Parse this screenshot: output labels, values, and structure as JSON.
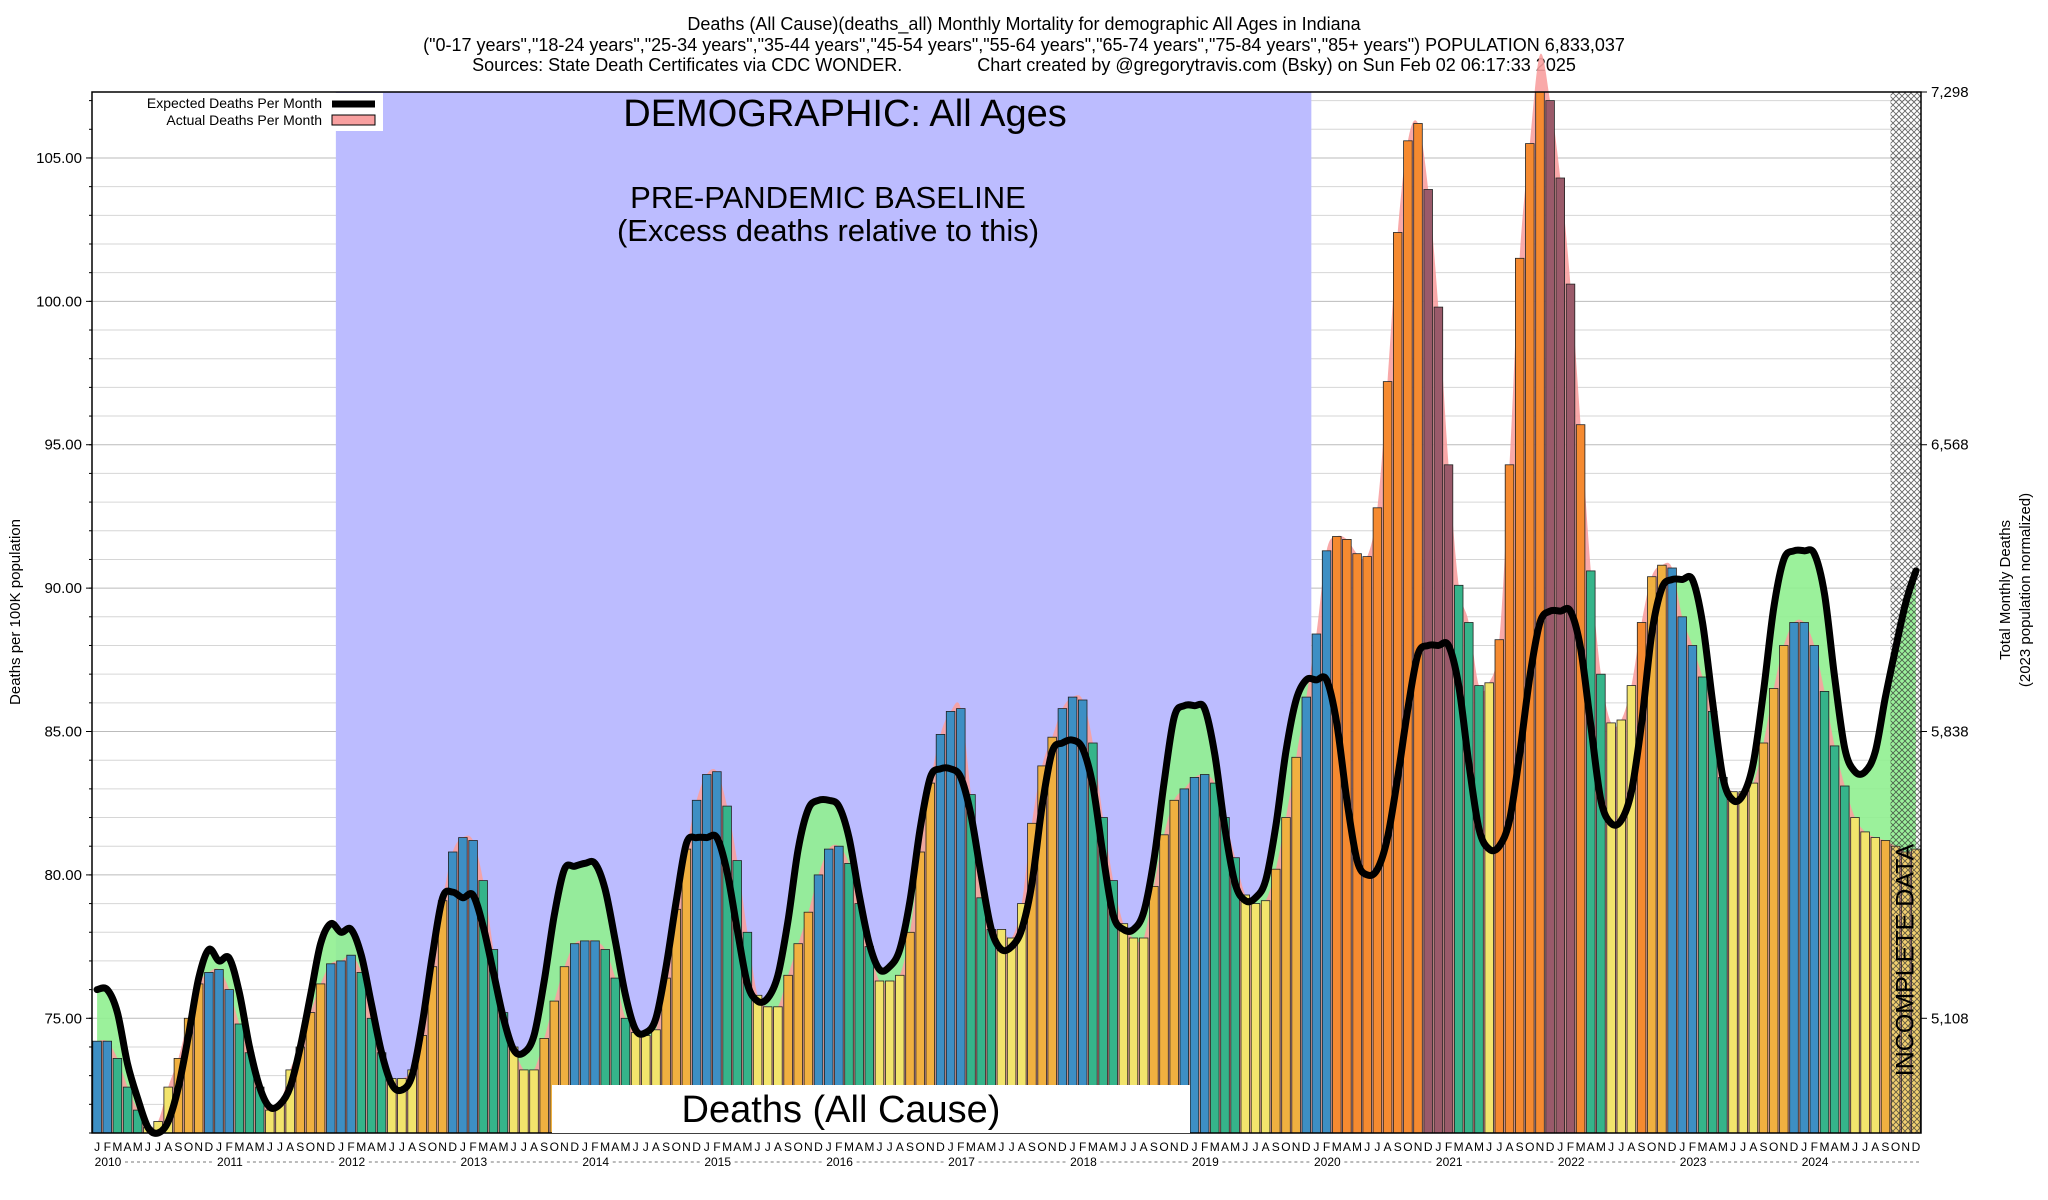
{
  "header": {
    "line1": "Deaths (All Cause)(deaths_all) Monthly Mortality for demographic All Ages in Indiana",
    "line2": "(\"0-17 years\",\"18-24 years\",\"25-34 years\",\"35-44 years\",\"45-54 years\",\"55-64 years\",\"65-74 years\",\"75-84 years\",\"85+ years\") POPULATION 6,833,037",
    "line3": "Sources: State Death Certificates via CDC WONDER.               Chart created by @gregorytravis.com (Bsky) on Sun Feb 02 06:17:33 2025"
  },
  "annotations": {
    "demographic": "DEMOGRAPHIC: All Ages",
    "baseline_line1": "PRE-PANDEMIC BASELINE",
    "baseline_line2": "(Excess deaths relative to this)",
    "bottom_label": "Deaths (All Cause)",
    "incomplete": "INCOMPLETE DATA"
  },
  "legend": {
    "expected": "Expected Deaths Per Month",
    "actual": "Actual Deaths Per Month"
  },
  "axes": {
    "left_label": "Deaths per 100K population",
    "right_label_1": "Total Monthly Deaths",
    "right_label_2": "(2023 population normalized)"
  },
  "colors": {
    "baseline_band": "#bcbcff",
    "actual_fill": "#f8a0a0",
    "excess_fill": "#90f090",
    "expected_line": "#000000",
    "bar_winter": "#3d8fc4",
    "bar_spring": "#35b48a",
    "bar_summer": "#f2e46c",
    "bar_fall": "#f0b040",
    "bar_excess": "#f58a30",
    "bar_excess_dark": "#9a5a6a"
  },
  "chart_data": {
    "type": "bar",
    "title": "Deaths (All Cause)(deaths_all) Monthly Mortality for demographic All Ages in Indiana",
    "xlabel": "",
    "ylabel": "Deaths per 100K population",
    "y2label": "Total Monthly Deaths (2023 population normalized)",
    "ylim": [
      71.0,
      107.3
    ],
    "yticks": [
      "75.00",
      "80.00",
      "85.00",
      "90.00",
      "95.00",
      "100.00",
      "105.00"
    ],
    "y2ticks": [
      "5,108",
      "5,838",
      "6,568",
      "7,298"
    ],
    "start": "2010-01",
    "month_letters": [
      "J",
      "F",
      "M",
      "A",
      "M",
      "J",
      "J",
      "A",
      "S",
      "O",
      "N",
      "D"
    ],
    "years": [
      "2010",
      "2011",
      "2012",
      "2013",
      "2014",
      "2015",
      "2016",
      "2017",
      "2018",
      "2019",
      "2020",
      "2021",
      "2022",
      "2023",
      "2024"
    ],
    "baseline_period": [
      "2012-01",
      "2019-12"
    ],
    "incomplete_period": [
      "2024-10",
      "2024-12"
    ],
    "series": [
      {
        "name": "Actual Deaths Per Month",
        "values": [
          74.2,
          74.2,
          73.6,
          72.6,
          71.8,
          71.2,
          71.4,
          72.6,
          73.6,
          75.0,
          76.2,
          76.6,
          76.7,
          76.0,
          74.8,
          73.8,
          72.6,
          71.8,
          72.0,
          73.2,
          74.0,
          75.2,
          76.2,
          76.9,
          77.0,
          77.2,
          76.6,
          75.0,
          73.8,
          72.9,
          72.9,
          73.2,
          74.4,
          76.8,
          79.1,
          80.8,
          81.3,
          81.2,
          79.8,
          77.4,
          75.2,
          74.0,
          73.2,
          73.2,
          74.3,
          75.6,
          76.8,
          77.6,
          77.7,
          77.7,
          77.4,
          76.4,
          75.0,
          74.5,
          74.4,
          74.6,
          76.4,
          78.8,
          80.9,
          82.6,
          83.5,
          83.6,
          82.4,
          80.5,
          78.0,
          75.8,
          75.4,
          75.4,
          76.5,
          77.6,
          78.7,
          80.0,
          80.9,
          81.0,
          80.4,
          79.0,
          77.5,
          76.3,
          76.3,
          76.5,
          78.0,
          80.8,
          83.2,
          84.9,
          85.7,
          85.8,
          82.8,
          79.2,
          78.1,
          78.1,
          77.8,
          79.0,
          81.8,
          83.8,
          84.8,
          85.8,
          86.2,
          86.1,
          84.6,
          82.0,
          79.8,
          78.3,
          77.8,
          77.8,
          79.6,
          81.4,
          82.6,
          83.0,
          83.4,
          83.5,
          83.2,
          82.0,
          80.6,
          79.3,
          79.0,
          79.1,
          80.2,
          82.0,
          84.1,
          86.2,
          88.4,
          91.3,
          91.8,
          91.7,
          91.2,
          91.1,
          92.8,
          97.2,
          102.4,
          105.6,
          106.2,
          103.9,
          99.8,
          94.3,
          90.1,
          88.8,
          86.6,
          86.7,
          88.2,
          94.3,
          101.5,
          105.5,
          108.6,
          107.0,
          104.3,
          100.6,
          95.7,
          90.6,
          87.0,
          85.3,
          85.4,
          86.6,
          88.8,
          90.4,
          90.8,
          90.7,
          89.0,
          88.0,
          86.9,
          85.7,
          83.4,
          82.9,
          82.9,
          83.2,
          84.6,
          86.5,
          88.0,
          88.8,
          88.8,
          88.0,
          86.4,
          84.5,
          83.1,
          82.0,
          81.5,
          81.3,
          81.2,
          81.0,
          80.8,
          80.9
        ]
      },
      {
        "name": "Expected Deaths Per Month",
        "values": [
          76.0,
          76.0,
          75.2,
          73.4,
          72.2,
          71.2,
          71.0,
          71.4,
          72.6,
          74.4,
          76.4,
          77.4,
          77.0,
          77.1,
          75.9,
          74.0,
          72.6,
          71.9,
          72.0,
          72.6,
          74.0,
          75.8,
          77.6,
          78.3,
          78.0,
          78.1,
          77.2,
          75.5,
          73.8,
          72.7,
          72.5,
          73.0,
          74.8,
          77.2,
          79.2,
          79.4,
          79.2,
          79.3,
          78.2,
          76.6,
          75.0,
          73.9,
          73.8,
          74.4,
          76.3,
          78.6,
          80.2,
          80.3,
          80.4,
          80.4,
          79.5,
          77.7,
          75.8,
          74.6,
          74.5,
          75.0,
          76.8,
          79.1,
          81.1,
          81.3,
          81.3,
          81.3,
          80.1,
          78.1,
          76.2,
          75.6,
          75.7,
          76.5,
          78.4,
          80.9,
          82.3,
          82.6,
          82.6,
          82.4,
          81.3,
          79.3,
          77.6,
          76.7,
          76.8,
          77.4,
          79.1,
          81.6,
          83.4,
          83.7,
          83.7,
          83.4,
          82.1,
          80.0,
          78.1,
          77.4,
          77.5,
          78.1,
          79.7,
          82.4,
          84.3,
          84.6,
          84.7,
          84.4,
          83.1,
          80.7,
          78.6,
          78.1,
          78.1,
          78.7,
          80.5,
          83.2,
          85.5,
          85.9,
          85.9,
          85.8,
          84.2,
          81.6,
          79.7,
          79.1,
          79.2,
          79.8,
          81.7,
          84.3,
          86.1,
          86.8,
          86.8,
          86.8,
          85.3,
          82.6,
          80.5,
          80.0,
          80.2,
          81.3,
          83.4,
          85.8,
          87.7,
          88.0,
          88.0,
          88.0,
          86.6,
          83.9,
          81.6,
          80.9,
          81.0,
          81.9,
          84.2,
          86.9,
          88.8,
          89.2,
          89.2,
          89.2,
          87.9,
          85.2,
          82.6,
          81.8,
          81.9,
          82.9,
          85.3,
          88.4,
          90.0,
          90.3,
          90.3,
          90.3,
          88.8,
          86.0,
          83.4,
          82.6,
          82.8,
          83.9,
          86.4,
          89.3,
          91.0,
          91.3,
          91.3,
          91.2,
          89.8,
          86.9,
          84.4,
          83.6,
          83.6,
          84.3,
          86.2,
          87.9,
          89.5,
          90.6
        ]
      }
    ],
    "legend": "top-left",
    "grid": true
  }
}
